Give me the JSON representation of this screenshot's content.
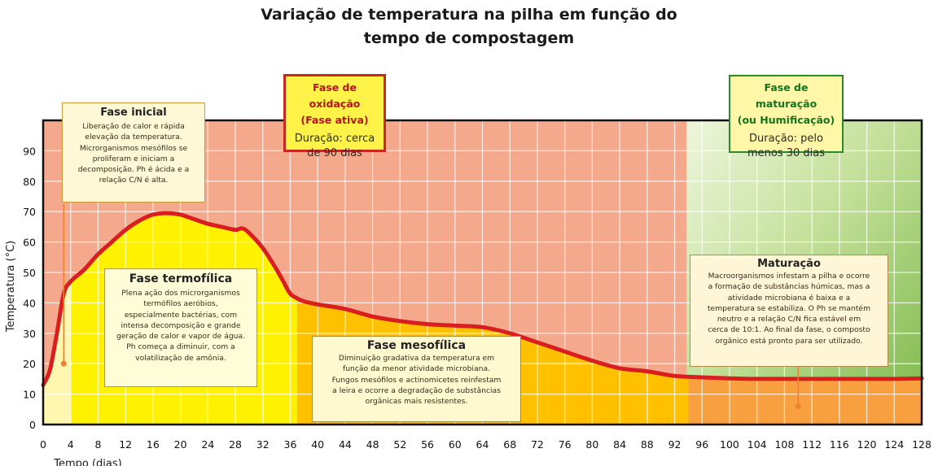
{
  "title": {
    "line1": "Variação de temperatura na pilha em função do",
    "line2": "tempo de compostagem"
  },
  "boxes": {
    "inicial": {
      "title": "Fase inicial",
      "lines": [
        "Liberação de calor e rápida",
        "elevação da temperatura.",
        "Microrganismos mesófilos  se",
        "proliferam e iniciam a",
        "decomposição. Ph é ácida e a",
        "relação C/N é alta."
      ]
    },
    "oxidacao": {
      "title_line1": "Fase de oxidação",
      "title_line2": "(Fase ativa)",
      "text_line1": "Duração: cerca",
      "text_line2": "de 90 dias"
    },
    "maturacao_fase": {
      "title_line1": "Fase de maturação",
      "title_line2": "(ou Humificação)",
      "text_line1": "Duração: pelo",
      "text_line2": "menos 30 dias"
    },
    "termofilica": {
      "title": "Fase termofílica",
      "lines": [
        "Plena ação dos microrganismos",
        "termófilos aeróbios,",
        "especialmente bactérias, com",
        "intensa decomposição e grande",
        "geração de calor e vapor de água.",
        "Ph começa a diminuir, com a",
        "volatilização de amônia."
      ]
    },
    "mesofilica": {
      "title": "Fase  mesofílica",
      "lines": [
        "Diminuição gradativa da temperatura em",
        "função da menor atividade microbiana.",
        "Fungos mesófilos e actinomicetes reinfestam",
        "a leira e ocorre a degradação de substâncias",
        "orgânicas mais resistentes."
      ]
    },
    "maturacao": {
      "title": "Maturação",
      "lines": [
        "Macroorganismos infestam a pilha e ocorre",
        "a formação de substâncias húmicas, mas a",
        "atividade microbiana é baixa e a",
        "temperatura se estabiliza. O Ph se mantém",
        "neutro e a relação C/N fica estável em",
        "cerca de 10:1. Ao final da fase, o composto",
        "orgânico está pronto para ser utilizado."
      ]
    }
  },
  "colors": {
    "curve": "#d81e1e",
    "grid": "#ffffff",
    "axis": "#111111",
    "oxidation_bg": "#f4a88c",
    "maturation_bg_light": "#e4f0c8",
    "maturation_bg_dark": "#8cc050",
    "initial_fill": "#fff6b0",
    "thermophilic_fill": "#fff200",
    "mesophilic_fill": "#ffc000",
    "maturation_fill": "#f8a040",
    "marker": "#f08030"
  },
  "chart_data": {
    "type": "area",
    "title": "Variação de temperatura na pilha em função do tempo de compostagem",
    "xlabel": "Tempo (dias)",
    "ylabel": "Temperatura (°C)",
    "xlim": [
      0,
      128
    ],
    "ylim": [
      0,
      100
    ],
    "x_ticks": [
      0,
      4,
      8,
      12,
      16,
      20,
      24,
      28,
      32,
      36,
      40,
      44,
      48,
      52,
      56,
      60,
      64,
      68,
      72,
      76,
      80,
      84,
      88,
      92,
      96,
      100,
      104,
      108,
      112,
      116,
      120,
      124,
      128
    ],
    "y_ticks": [
      0,
      10,
      20,
      30,
      40,
      50,
      60,
      70,
      80,
      90
    ],
    "grid": true,
    "series": [
      {
        "x": [
          0,
          1,
          2,
          3,
          4,
          6,
          8,
          10,
          12,
          14,
          16,
          18,
          20,
          22,
          24,
          26,
          28,
          29,
          30,
          32,
          34,
          35,
          36,
          37,
          38,
          40,
          44,
          48,
          52,
          56,
          60,
          64,
          68,
          72,
          76,
          80,
          84,
          88,
          92,
          96,
          100,
          104,
          108,
          112,
          116,
          120,
          124,
          128
        ],
        "y": [
          13,
          18,
          30,
          43,
          47,
          51,
          56,
          60,
          64,
          67,
          69,
          69.5,
          69,
          67.5,
          66,
          65,
          64,
          64.5,
          63,
          58,
          51,
          47,
          43,
          41.5,
          40.5,
          39.5,
          38,
          35.5,
          34,
          33,
          32.5,
          32,
          30,
          27,
          24,
          21,
          18.5,
          17.5,
          16,
          15.5,
          15.2,
          15,
          15,
          15,
          15,
          15,
          15,
          15.2
        ]
      }
    ],
    "regions": [
      {
        "label": "Fase inicial",
        "x_range": [
          0,
          4
        ]
      },
      {
        "label": "Fase termofílica",
        "x_range": [
          4,
          37
        ]
      },
      {
        "label": "Fase mesofílica",
        "x_range": [
          37,
          94
        ]
      },
      {
        "label": "Maturação",
        "x_range": [
          94,
          128
        ]
      }
    ]
  }
}
